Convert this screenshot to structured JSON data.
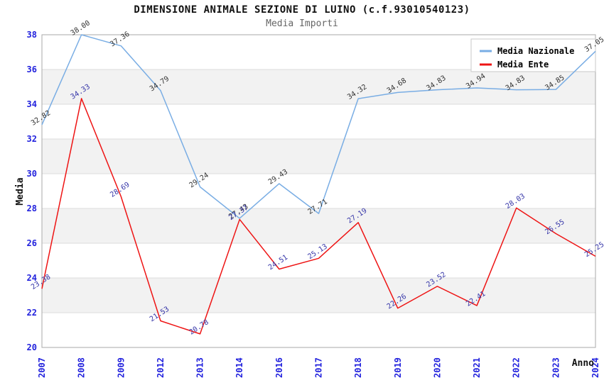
{
  "chart_data": {
    "type": "line",
    "title": "DIMENSIONE ANIMALE SEZIONE DI LUINO (c.f.93010540123)",
    "subtitle": "Media Importi",
    "xlabel": "Anno",
    "ylabel": "Media",
    "ylim": [
      20,
      38
    ],
    "ytick_step": 2,
    "grid": true,
    "band_fill": "#f2f2f2",
    "gridline_color": "#dcdcdc",
    "border_color": "#aaaaaa",
    "axis_tick_color": "#2222dd",
    "axis_title_color": "#111111",
    "legend_position": "top-right",
    "categories": [
      "2007",
      "2008",
      "2009",
      "2012",
      "2013",
      "2014",
      "2016",
      "2017",
      "2018",
      "2019",
      "2020",
      "2021",
      "2022",
      "2023",
      "2024"
    ],
    "series": [
      {
        "name": "Media Nazionale",
        "color": "#79ade4",
        "label_color": "#333333",
        "values": [
          32.82,
          38.0,
          37.36,
          34.79,
          29.24,
          27.43,
          29.43,
          27.71,
          34.32,
          34.68,
          34.83,
          34.94,
          34.83,
          34.85,
          37.05
        ]
      },
      {
        "name": "Media Ente",
        "color": "#ee1414",
        "label_color": "#3535a8",
        "values": [
          23.38,
          34.33,
          28.69,
          21.53,
          20.78,
          27.37,
          24.51,
          25.13,
          27.19,
          22.26,
          23.52,
          22.41,
          28.03,
          26.55,
          25.25
        ]
      }
    ]
  }
}
